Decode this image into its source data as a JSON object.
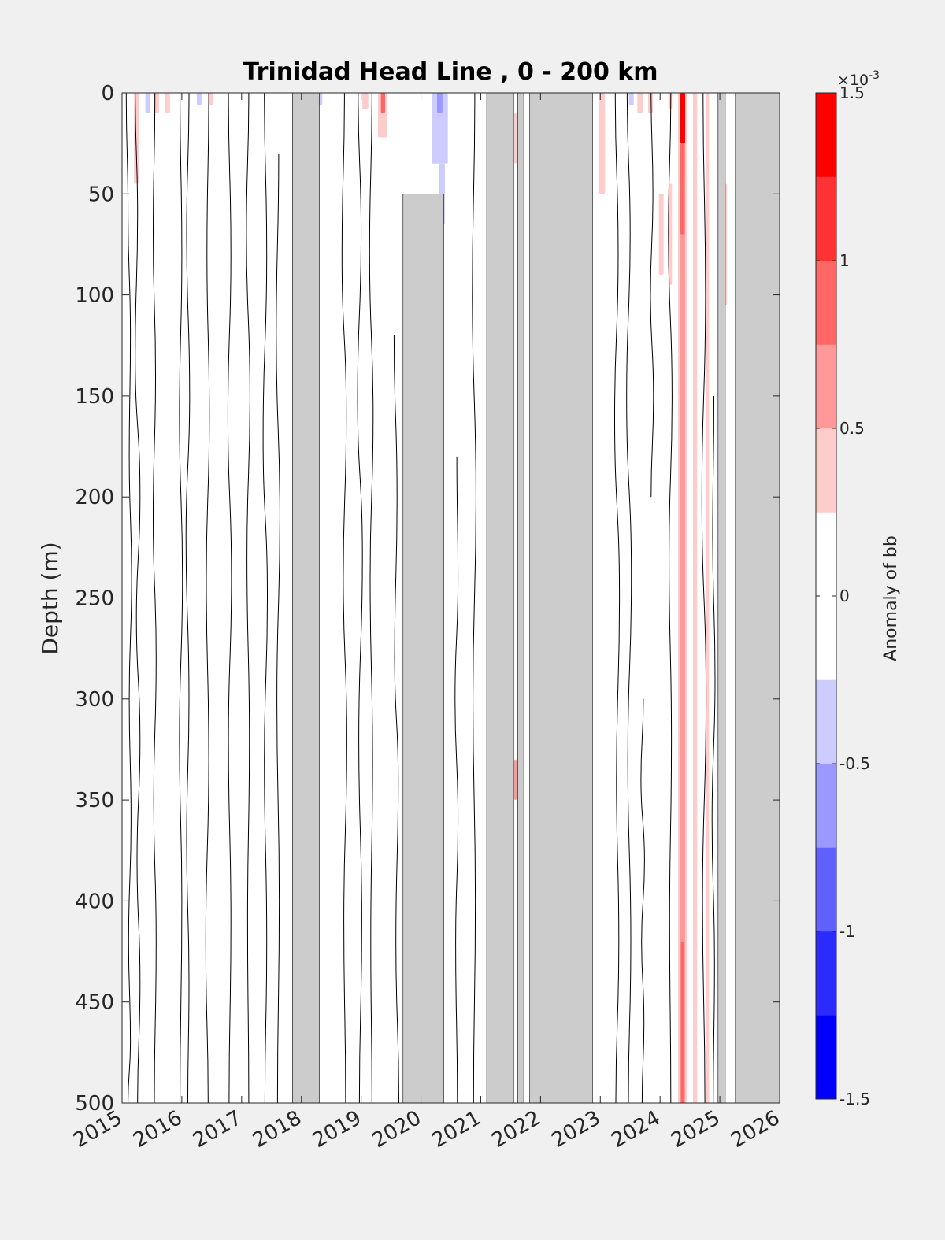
{
  "chart_data": {
    "type": "heatmap",
    "title": "Trinidad Head Line , 0 - 200 km",
    "xlabel": "",
    "ylabel": "Depth (m)",
    "xlim": [
      2015,
      2026
    ],
    "ylim": [
      0,
      500
    ],
    "y_reversed": true,
    "x_ticks": [
      2015,
      2016,
      2017,
      2018,
      2019,
      2020,
      2021,
      2022,
      2023,
      2024,
      2025,
      2026
    ],
    "y_ticks": [
      0,
      50,
      100,
      150,
      200,
      250,
      300,
      350,
      400,
      450,
      500
    ],
    "colorbar": {
      "label": "Anomaly of bb",
      "exponent_label": "×10",
      "exponent_power": "-3",
      "range": [
        -1.5,
        1.5
      ],
      "ticks": [
        {
          "value": -1.5,
          "label": "-1.5"
        },
        {
          "value": -1,
          "label": "-1"
        },
        {
          "value": -0.5,
          "label": "-0.5"
        },
        {
          "value": 0,
          "label": "0"
        },
        {
          "value": 0.5,
          "label": "0.5"
        },
        {
          "value": 1,
          "label": "1"
        },
        {
          "value": 1.5,
          "label": "1.5"
        }
      ],
      "levels": [
        {
          "from": -1.5,
          "to": -1.25,
          "color": "#0000ff"
        },
        {
          "from": -1.25,
          "to": -1.0,
          "color": "#2b2bff"
        },
        {
          "from": -1.0,
          "to": -0.75,
          "color": "#6060ff"
        },
        {
          "from": -0.75,
          "to": -0.5,
          "color": "#9999ff"
        },
        {
          "from": -0.5,
          "to": -0.25,
          "color": "#ccccff"
        },
        {
          "from": -0.25,
          "to": 0.25,
          "color": "#ffffff"
        },
        {
          "from": 0.25,
          "to": 0.5,
          "color": "#ffcccc"
        },
        {
          "from": 0.5,
          "to": 0.75,
          "color": "#ff9999"
        },
        {
          "from": 0.75,
          "to": 1.0,
          "color": "#ff6666"
        },
        {
          "from": 1.0,
          "to": 1.25,
          "color": "#ff3333"
        },
        {
          "from": 1.25,
          "to": 1.5,
          "color": "#ff0000"
        }
      ]
    },
    "missing_data_color": "#cccccc",
    "missing_data": [
      {
        "x0": 2017.85,
        "x1": 2018.3,
        "d0": 0,
        "d1": 500
      },
      {
        "x0": 2019.7,
        "x1": 2020.38,
        "d0": 50,
        "d1": 500
      },
      {
        "x0": 2021.1,
        "x1": 2021.55,
        "d0": 0,
        "d1": 500
      },
      {
        "x0": 2021.62,
        "x1": 2021.72,
        "d0": 0,
        "d1": 500
      },
      {
        "x0": 2021.82,
        "x1": 2022.87,
        "d0": 0,
        "d1": 500
      },
      {
        "x0": 2024.97,
        "x1": 2025.09,
        "d0": 0,
        "d1": 500
      },
      {
        "x0": 2025.26,
        "x1": 2026.0,
        "d0": 0,
        "d1": 500
      }
    ],
    "anomaly_patches": [
      {
        "x0": 2015.2,
        "x1": 2015.29,
        "d0": 0,
        "d1": 45,
        "value": 0.3
      },
      {
        "x0": 2015.39,
        "x1": 2015.47,
        "d0": 0,
        "d1": 10,
        "value": -0.3
      },
      {
        "x0": 2015.53,
        "x1": 2015.62,
        "d0": 0,
        "d1": 10,
        "value": 0.3
      },
      {
        "x0": 2015.72,
        "x1": 2015.8,
        "d0": 0,
        "d1": 10,
        "value": 0.3
      },
      {
        "x0": 2016.25,
        "x1": 2016.33,
        "d0": 0,
        "d1": 6,
        "value": -0.3
      },
      {
        "x0": 2016.46,
        "x1": 2016.53,
        "d0": 0,
        "d1": 6,
        "value": 0.3
      },
      {
        "x0": 2018.2,
        "x1": 2018.35,
        "d0": 0,
        "d1": 6,
        "value": -0.3
      },
      {
        "x0": 2019.02,
        "x1": 2019.12,
        "d0": 0,
        "d1": 8,
        "value": 0.3
      },
      {
        "x0": 2019.28,
        "x1": 2019.44,
        "d0": 0,
        "d1": 22,
        "value": 0.4
      },
      {
        "x0": 2019.33,
        "x1": 2019.4,
        "d0": 0,
        "d1": 10,
        "value": 0.8
      },
      {
        "x0": 2020.18,
        "x1": 2020.45,
        "d0": 0,
        "d1": 35,
        "value": -0.3
      },
      {
        "x0": 2020.27,
        "x1": 2020.36,
        "d0": 0,
        "d1": 10,
        "value": -0.6
      },
      {
        "x0": 2020.3,
        "x1": 2020.4,
        "d0": 35,
        "d1": 65,
        "value": -0.3
      },
      {
        "x0": 2021.56,
        "x1": 2021.6,
        "d0": 10,
        "d1": 35,
        "value": 0.3
      },
      {
        "x0": 2021.56,
        "x1": 2021.6,
        "d0": 330,
        "d1": 350,
        "value": 0.6
      },
      {
        "x0": 2022.98,
        "x1": 2023.08,
        "d0": 0,
        "d1": 50,
        "value": 0.3
      },
      {
        "x0": 2023.48,
        "x1": 2023.56,
        "d0": 0,
        "d1": 6,
        "value": -0.3
      },
      {
        "x0": 2023.62,
        "x1": 2023.72,
        "d0": 0,
        "d1": 10,
        "value": 0.3
      },
      {
        "x0": 2023.8,
        "x1": 2023.88,
        "d0": 0,
        "d1": 10,
        "value": 0.3
      },
      {
        "x0": 2023.98,
        "x1": 2024.06,
        "d0": 50,
        "d1": 90,
        "value": 0.3
      },
      {
        "x0": 2024.14,
        "x1": 2024.2,
        "d0": 45,
        "d1": 95,
        "value": 0.3
      },
      {
        "x0": 2024.14,
        "x1": 2024.2,
        "d0": 0,
        "d1": 8,
        "value": 0.3
      },
      {
        "x0": 2024.3,
        "x1": 2024.45,
        "d0": 0,
        "d1": 500,
        "value": 0.3
      },
      {
        "x0": 2024.33,
        "x1": 2024.42,
        "d0": 0,
        "d1": 500,
        "value": 0.55
      },
      {
        "x0": 2024.34,
        "x1": 2024.42,
        "d0": 0,
        "d1": 25,
        "value": 1.3
      },
      {
        "x0": 2024.34,
        "x1": 2024.41,
        "d0": 25,
        "d1": 70,
        "value": 0.8
      },
      {
        "x0": 2024.35,
        "x1": 2024.4,
        "d0": 420,
        "d1": 500,
        "value": 0.8
      },
      {
        "x0": 2024.55,
        "x1": 2024.62,
        "d0": 0,
        "d1": 500,
        "value": 0.3
      },
      {
        "x0": 2024.76,
        "x1": 2024.82,
        "d0": 0,
        "d1": 500,
        "value": 0.3
      },
      {
        "x0": 2025.0,
        "x1": 2025.12,
        "d0": 45,
        "d1": 105,
        "value": 0.3
      }
    ],
    "contour_lines": [
      {
        "x": [
          2015.07,
          2015.1,
          2015.14,
          2015.12,
          2015.16,
          2015.12,
          2015.15,
          2015.11,
          2015.14,
          2015.1
        ],
        "d": [
          0,
          60,
          120,
          180,
          240,
          300,
          360,
          420,
          470,
          500
        ]
      },
      {
        "x": [
          2015.22,
          2015.26,
          2015.22,
          2015.3,
          2015.24,
          2015.3,
          2015.25,
          2015.3,
          2015.26
        ],
        "d": [
          0,
          60,
          130,
          200,
          260,
          320,
          380,
          440,
          500
        ]
      },
      {
        "x": [
          2015.55,
          2015.52,
          2015.56,
          2015.52,
          2015.57,
          2015.53,
          2015.57,
          2015.54
        ],
        "d": [
          0,
          70,
          140,
          210,
          280,
          350,
          420,
          500
        ]
      },
      {
        "x": [
          2015.97,
          2016.0,
          2015.96,
          2016.01,
          2015.96,
          2016.0,
          2015.97
        ],
        "d": [
          0,
          80,
          160,
          240,
          320,
          400,
          500
        ]
      },
      {
        "x": [
          2016.12,
          2016.08,
          2016.13,
          2016.07,
          2016.12,
          2016.08,
          2016.12,
          2016.1
        ],
        "d": [
          0,
          70,
          150,
          220,
          300,
          370,
          440,
          500
        ]
      },
      {
        "x": [
          2016.45,
          2016.42,
          2016.46,
          2016.41,
          2016.45,
          2016.4,
          2016.44
        ],
        "d": [
          0,
          80,
          160,
          240,
          330,
          420,
          500
        ]
      },
      {
        "x": [
          2016.78,
          2016.82,
          2016.77,
          2016.83,
          2016.78,
          2016.82,
          2016.79
        ],
        "d": [
          0,
          80,
          160,
          240,
          320,
          410,
          500
        ]
      },
      {
        "x": [
          2017.12,
          2017.08,
          2017.14,
          2017.09,
          2017.13,
          2017.1,
          2017.12
        ],
        "d": [
          0,
          70,
          150,
          230,
          320,
          410,
          500
        ]
      },
      {
        "x": [
          2017.38,
          2017.42,
          2017.36,
          2017.43,
          2017.38,
          2017.42,
          2017.39
        ],
        "d": [
          0,
          80,
          170,
          250,
          330,
          420,
          500
        ]
      },
      {
        "x": [
          2017.62,
          2017.58,
          2017.64,
          2017.59,
          2017.63,
          2017.6
        ],
        "d": [
          30,
          120,
          210,
          300,
          400,
          500
        ]
      },
      {
        "x": [
          2018.72,
          2018.68,
          2018.75,
          2018.7,
          2018.76,
          2018.71,
          2018.74
        ],
        "d": [
          0,
          80,
          160,
          240,
          320,
          410,
          500
        ]
      },
      {
        "x": [
          2018.95,
          2019.0,
          2018.94,
          2019.02,
          2018.96,
          2019.01,
          2018.97
        ],
        "d": [
          0,
          70,
          150,
          230,
          320,
          410,
          500
        ]
      },
      {
        "x": [
          2019.18,
          2019.14,
          2019.2,
          2019.15,
          2019.19,
          2019.16,
          2019.18
        ],
        "d": [
          0,
          80,
          160,
          240,
          330,
          420,
          500
        ]
      },
      {
        "x": [
          2019.55,
          2019.6,
          2019.56,
          2019.62,
          2019.58,
          2019.63
        ],
        "d": [
          120,
          200,
          280,
          340,
          420,
          500
        ]
      },
      {
        "x": [
          2020.6,
          2020.62,
          2020.57,
          2020.62,
          2020.58,
          2020.61
        ],
        "d": [
          180,
          240,
          300,
          360,
          420,
          500
        ]
      },
      {
        "x": [
          2020.9,
          2020.86,
          2020.92,
          2020.87,
          2020.91,
          2020.88
        ],
        "d": [
          0,
          100,
          200,
          300,
          400,
          500
        ]
      },
      {
        "x": [
          2023.25,
          2023.3,
          2023.24,
          2023.32,
          2023.27,
          2023.31,
          2023.26
        ],
        "d": [
          0,
          80,
          160,
          250,
          340,
          420,
          500
        ]
      },
      {
        "x": [
          2023.45,
          2023.5,
          2023.44,
          2023.52,
          2023.46,
          2023.51,
          2023.47
        ],
        "d": [
          0,
          70,
          150,
          240,
          330,
          420,
          500
        ]
      },
      {
        "x": [
          2023.72,
          2023.68,
          2023.74,
          2023.69,
          2023.73,
          2023.7
        ],
        "d": [
          300,
          340,
          380,
          420,
          460,
          500
        ]
      },
      {
        "x": [
          2023.85,
          2023.88,
          2023.84,
          2023.89,
          2023.85
        ],
        "d": [
          0,
          50,
          100,
          150,
          200
        ]
      },
      {
        "x": [
          2024.18,
          2024.14,
          2024.2,
          2024.15,
          2024.19,
          2024.16,
          2024.18
        ],
        "d": [
          0,
          70,
          150,
          230,
          320,
          410,
          500
        ]
      },
      {
        "x": [
          2024.72,
          2024.76,
          2024.7,
          2024.77,
          2024.71,
          2024.75
        ],
        "d": [
          0,
          100,
          200,
          300,
          400,
          500
        ]
      },
      {
        "x": [
          2024.9,
          2024.88,
          2024.92,
          2024.87,
          2024.91,
          2024.89
        ],
        "d": [
          150,
          220,
          290,
          360,
          430,
          500
        ]
      }
    ]
  }
}
